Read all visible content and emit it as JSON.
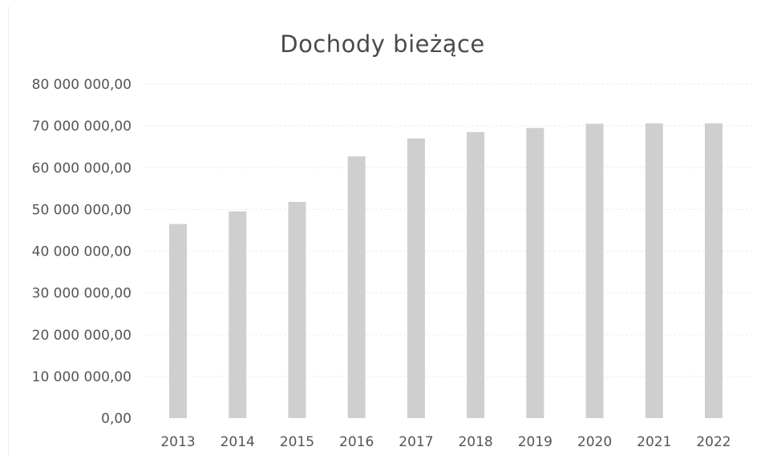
{
  "chart_data": {
    "type": "bar",
    "title": "Dochody bieżące",
    "xlabel": "",
    "ylabel": "",
    "categories": [
      "2013",
      "2014",
      "2015",
      "2016",
      "2017",
      "2018",
      "2019",
      "2020",
      "2021",
      "2022"
    ],
    "values": [
      46500000,
      49500000,
      51800000,
      62700000,
      67000000,
      68500000,
      69500000,
      70500000,
      70600000,
      70600000
    ],
    "ylim": [
      0,
      80000000
    ],
    "y_ticks": [
      0,
      10000000,
      20000000,
      30000000,
      40000000,
      50000000,
      60000000,
      70000000,
      80000000
    ],
    "y_tick_labels": [
      "0,00",
      "10 000 000,00",
      "20 000 000,00",
      "30 000 000,00",
      "40 000 000,00",
      "50 000 000,00",
      "60 000 000,00",
      "70 000 000,00",
      "80 000 000,00"
    ],
    "grid": true,
    "legend": "none",
    "bar_color": "#cfcfcf",
    "text_color": "#555555"
  }
}
